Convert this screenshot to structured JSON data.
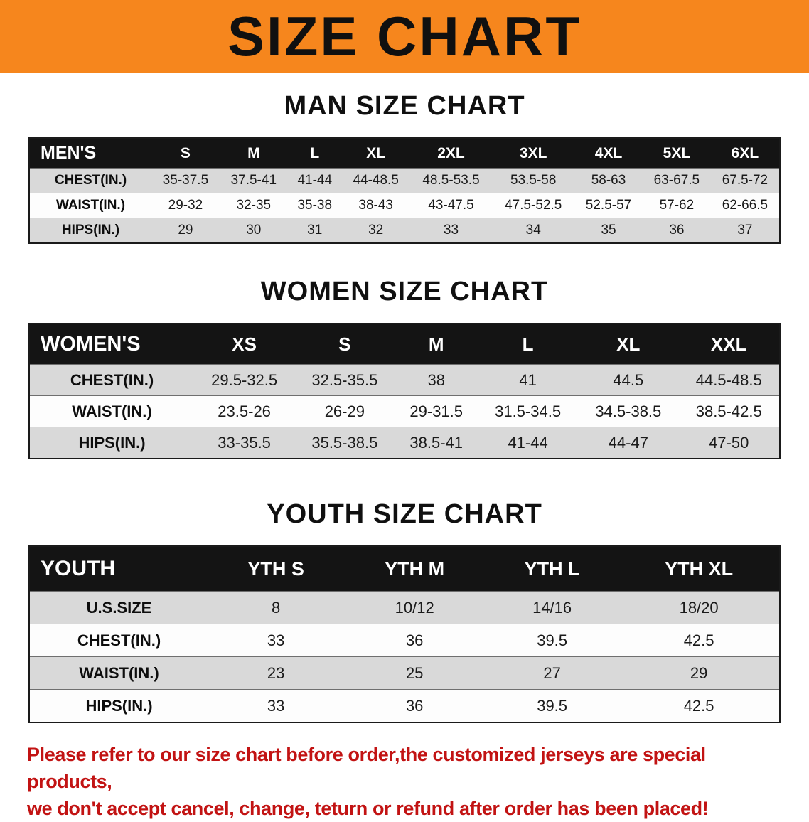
{
  "banner": {
    "title": "SIZE CHART"
  },
  "sections": [
    {
      "id": "men",
      "heading": "MAN SIZE CHART",
      "header": [
        "MEN'S",
        "S",
        "M",
        "L",
        "XL",
        "2XL",
        "3XL",
        "4XL",
        "5XL",
        "6XL"
      ],
      "rows": [
        [
          "CHEST(IN.)",
          "35-37.5",
          "37.5-41",
          "41-44",
          "44-48.5",
          "48.5-53.5",
          "53.5-58",
          "58-63",
          "63-67.5",
          "67.5-72"
        ],
        [
          "WAIST(IN.)",
          "29-32",
          "32-35",
          "35-38",
          "38-43",
          "43-47.5",
          "47.5-52.5",
          "52.5-57",
          "57-62",
          "62-66.5"
        ],
        [
          "HIPS(IN.)",
          "29",
          "30",
          "31",
          "32",
          "33",
          "34",
          "35",
          "36",
          "37"
        ]
      ]
    },
    {
      "id": "women",
      "heading": "WOMEN SIZE CHART",
      "header": [
        "WOMEN'S",
        "XS",
        "S",
        "M",
        "L",
        "XL",
        "XXL"
      ],
      "rows": [
        [
          "CHEST(IN.)",
          "29.5-32.5",
          "32.5-35.5",
          "38",
          "41",
          "44.5",
          "44.5-48.5"
        ],
        [
          "WAIST(IN.)",
          "23.5-26",
          "26-29",
          "29-31.5",
          "31.5-34.5",
          "34.5-38.5",
          "38.5-42.5"
        ],
        [
          "HIPS(IN.)",
          "33-35.5",
          "35.5-38.5",
          "38.5-41",
          "41-44",
          "44-47",
          "47-50"
        ]
      ]
    },
    {
      "id": "youth",
      "heading": "YOUTH SIZE CHART",
      "header": [
        "YOUTH",
        "YTH S",
        "YTH M",
        "YTH L",
        "YTH XL"
      ],
      "rows": [
        [
          "U.S.SIZE",
          "8",
          "10/12",
          "14/16",
          "18/20"
        ],
        [
          "CHEST(IN.)",
          "33",
          "36",
          "39.5",
          "42.5"
        ],
        [
          "WAIST(IN.)",
          "23",
          "25",
          "27",
          "29"
        ],
        [
          "HIPS(IN.)",
          "33",
          "36",
          "39.5",
          "42.5"
        ]
      ]
    }
  ],
  "footer": {
    "line1": "Please refer to our size chart before order,the customized jerseys are special products,",
    "line2": "we don't accept cancel, change, teturn or refund after order has been placed!"
  },
  "colors": {
    "banner_orange": "#F6861D",
    "table_header_black": "#141414",
    "row_gray": "#D9D9D9",
    "disclaimer_red": "#C21313"
  }
}
